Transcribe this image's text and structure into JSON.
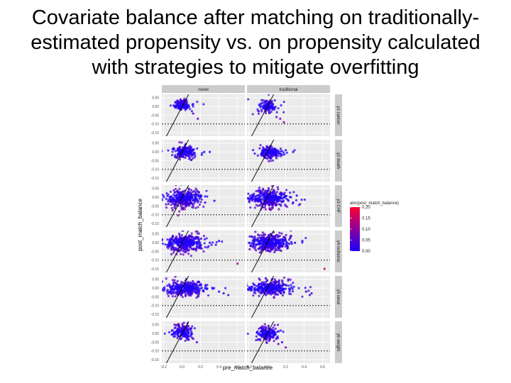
{
  "title_lines": [
    "Covariate balance after matching on traditionally-",
    "estimated propensity vs. on propensity calculated",
    "with strategies to mitigate overfitting"
  ],
  "chart_data": {
    "type": "scatter",
    "facet_columns": [
      "novel",
      "traditional"
    ],
    "facet_rows": [
      "y1 cancer",
      "y2 death",
      "y3 CHF",
      "y4 ischemic",
      "y5 renal",
      "y6 weight"
    ],
    "xlabel": "pre_match_balance",
    "ylabel": "post_match_balance",
    "x_ticks": [
      -0.2,
      0.0,
      0.2,
      0.4,
      0.6
    ],
    "x_tick_labels": [
      "-0.2",
      "0.0",
      "0.2",
      "0.4",
      "0.6"
    ],
    "xlim": [
      -0.22,
      0.68
    ],
    "y_ticks": [
      0.05,
      0.0,
      -0.05,
      -0.1,
      -0.15
    ],
    "y_tick_labels": [
      "0.05",
      "0.00",
      "-0.05",
      "-0.10",
      "-0.15"
    ],
    "ylim": [
      -0.17,
      0.07
    ],
    "reference_lines": {
      "diagonal": "y = x",
      "dashed_horizontal_y": -0.1
    },
    "color_legend": {
      "title": "abs(post_match_balance)",
      "ticks": [
        0.2,
        0.15,
        0.1,
        0.05,
        0.0
      ],
      "tick_labels": [
        "0.20",
        "0.15",
        "0.10",
        "0.05",
        "0.00"
      ],
      "low_color": "#1a00ff",
      "high_color": "#ff0033"
    },
    "grid": true,
    "panel_background": "#ebebeb",
    "strip_background": "#cccccc",
    "legend_position": "right",
    "panel_clusters": [
      {
        "row": 0,
        "col": 0,
        "cx": 0.0,
        "cy": 0.01,
        "sx": 0.045,
        "sy": 0.016,
        "n": 130,
        "tail": [
          [
            0.12,
            -0.04
          ],
          [
            0.17,
            -0.07
          ]
        ]
      },
      {
        "row": 0,
        "col": 1,
        "cx": 0.0,
        "cy": 0.0,
        "sx": 0.045,
        "sy": 0.018,
        "n": 120,
        "tail": [
          [
            0.14,
            -0.07
          ],
          [
            0.18,
            -0.09
          ],
          [
            0.1,
            -0.06
          ]
        ]
      },
      {
        "row": 1,
        "col": 0,
        "cx": 0.02,
        "cy": 0.0,
        "sx": 0.06,
        "sy": 0.018,
        "n": 180,
        "tail": [
          [
            0.24,
            0.0
          ],
          [
            0.3,
            0.0
          ]
        ]
      },
      {
        "row": 1,
        "col": 1,
        "cx": 0.02,
        "cy": 0.0,
        "sx": 0.06,
        "sy": 0.018,
        "n": 170,
        "tail": [
          [
            0.2,
            0.01
          ],
          [
            0.28,
            0.0
          ]
        ]
      },
      {
        "row": 2,
        "col": 0,
        "cx": 0.02,
        "cy": -0.01,
        "sx": 0.085,
        "sy": 0.025,
        "n": 360,
        "tail": [
          [
            0.25,
            -0.03
          ],
          [
            0.35,
            -0.02
          ]
        ]
      },
      {
        "row": 2,
        "col": 1,
        "cx": 0.02,
        "cy": -0.01,
        "sx": 0.085,
        "sy": 0.025,
        "n": 360,
        "tail": [
          [
            0.28,
            -0.03
          ],
          [
            0.32,
            0.01
          ]
        ]
      },
      {
        "row": 3,
        "col": 0,
        "cx": 0.03,
        "cy": 0.0,
        "sx": 0.09,
        "sy": 0.025,
        "n": 380,
        "tail": [
          [
            0.3,
            0.0
          ],
          [
            0.4,
            0.01
          ],
          [
            0.6,
            -0.12
          ]
        ]
      },
      {
        "row": 3,
        "col": 1,
        "cx": 0.03,
        "cy": 0.0,
        "sx": 0.09,
        "sy": 0.025,
        "n": 380,
        "tail": [
          [
            0.3,
            0.0
          ],
          [
            0.38,
            0.01
          ],
          [
            0.62,
            -0.15
          ]
        ]
      },
      {
        "row": 4,
        "col": 0,
        "cx": 0.04,
        "cy": 0.0,
        "sx": 0.1,
        "sy": 0.02,
        "n": 320,
        "tail": [
          [
            0.4,
            -0.02
          ],
          [
            0.45,
            -0.03
          ],
          [
            0.5,
            -0.04
          ]
        ]
      },
      {
        "row": 4,
        "col": 1,
        "cx": 0.04,
        "cy": 0.0,
        "sx": 0.1,
        "sy": 0.02,
        "n": 320,
        "tail": [
          [
            0.42,
            -0.02
          ],
          [
            0.48,
            -0.03
          ],
          [
            0.46,
            -0.04
          ]
        ]
      },
      {
        "row": 5,
        "col": 0,
        "cx": 0.0,
        "cy": 0.01,
        "sx": 0.05,
        "sy": 0.02,
        "n": 170,
        "tail": [
          [
            0.12,
            -0.03
          ],
          [
            0.16,
            -0.05
          ]
        ]
      },
      {
        "row": 5,
        "col": 1,
        "cx": 0.0,
        "cy": 0.0,
        "sx": 0.05,
        "sy": 0.02,
        "n": 170,
        "tail": [
          [
            0.16,
            -0.05
          ],
          [
            0.2,
            -0.08
          ],
          [
            0.12,
            -0.06
          ]
        ]
      }
    ]
  }
}
